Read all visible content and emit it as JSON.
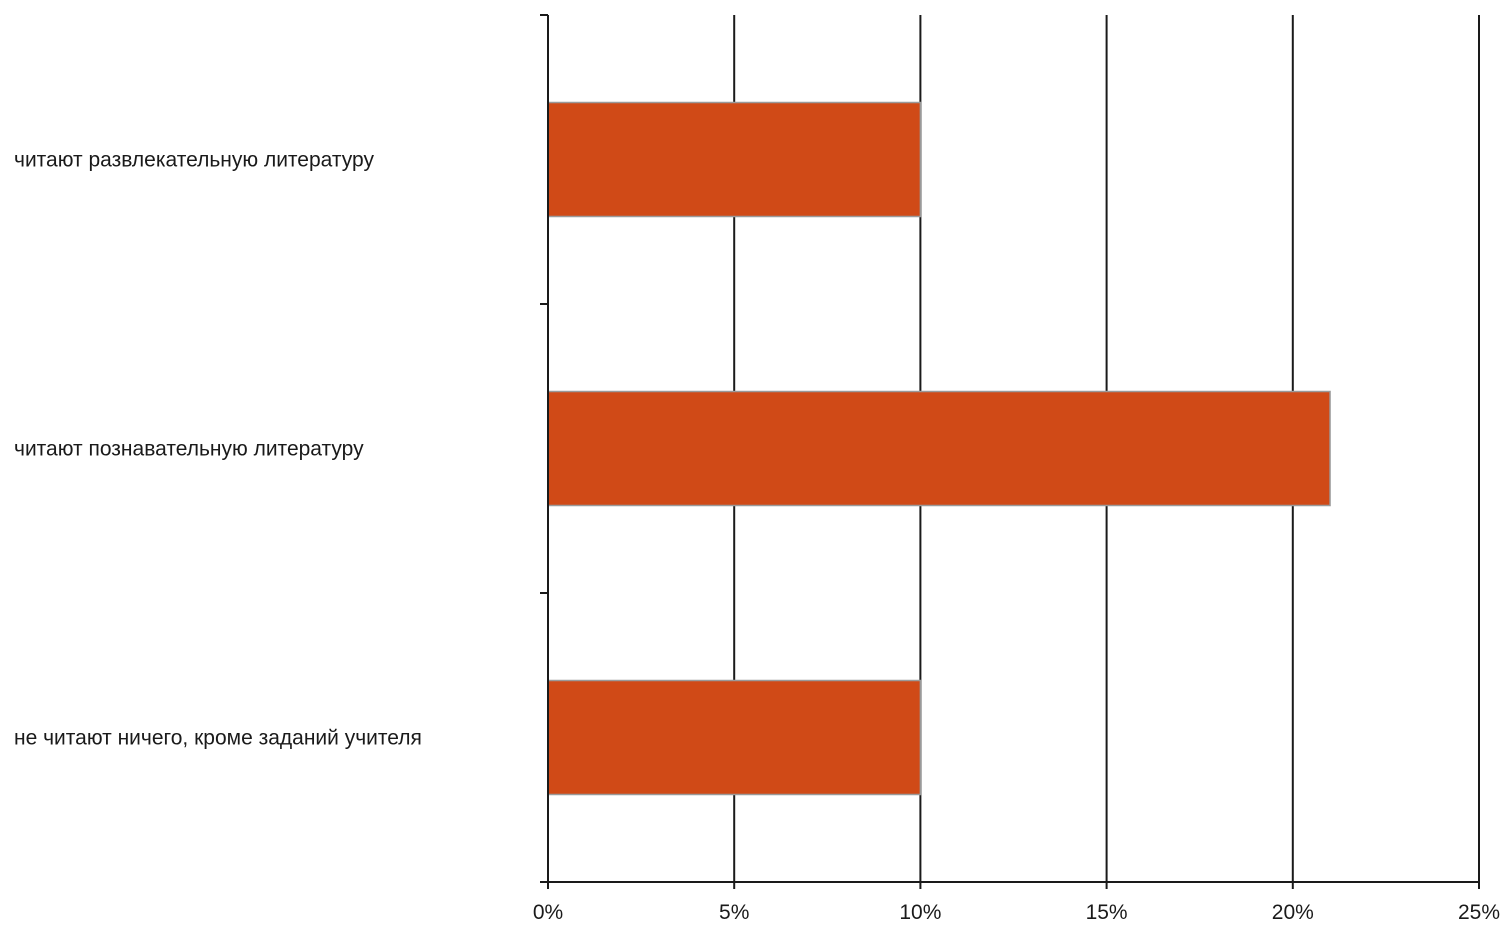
{
  "chart_data": {
    "type": "bar",
    "orientation": "horizontal",
    "categories": [
      "читают развлекательную литературу",
      "читают познавательную литературу",
      "не читают ничего, кроме заданий учителя"
    ],
    "values": [
      10,
      21,
      10
    ],
    "value_unit": "%",
    "xlim": [
      0,
      25
    ],
    "x_ticks": [
      0,
      5,
      10,
      15,
      20,
      25
    ],
    "x_tick_labels": [
      "0%",
      "5%",
      "10%",
      "15%",
      "20%",
      "25%"
    ],
    "title": "",
    "xlabel": "",
    "ylabel": "",
    "grid": "vertical",
    "legend": "none",
    "bar_color": "#d04a17"
  }
}
